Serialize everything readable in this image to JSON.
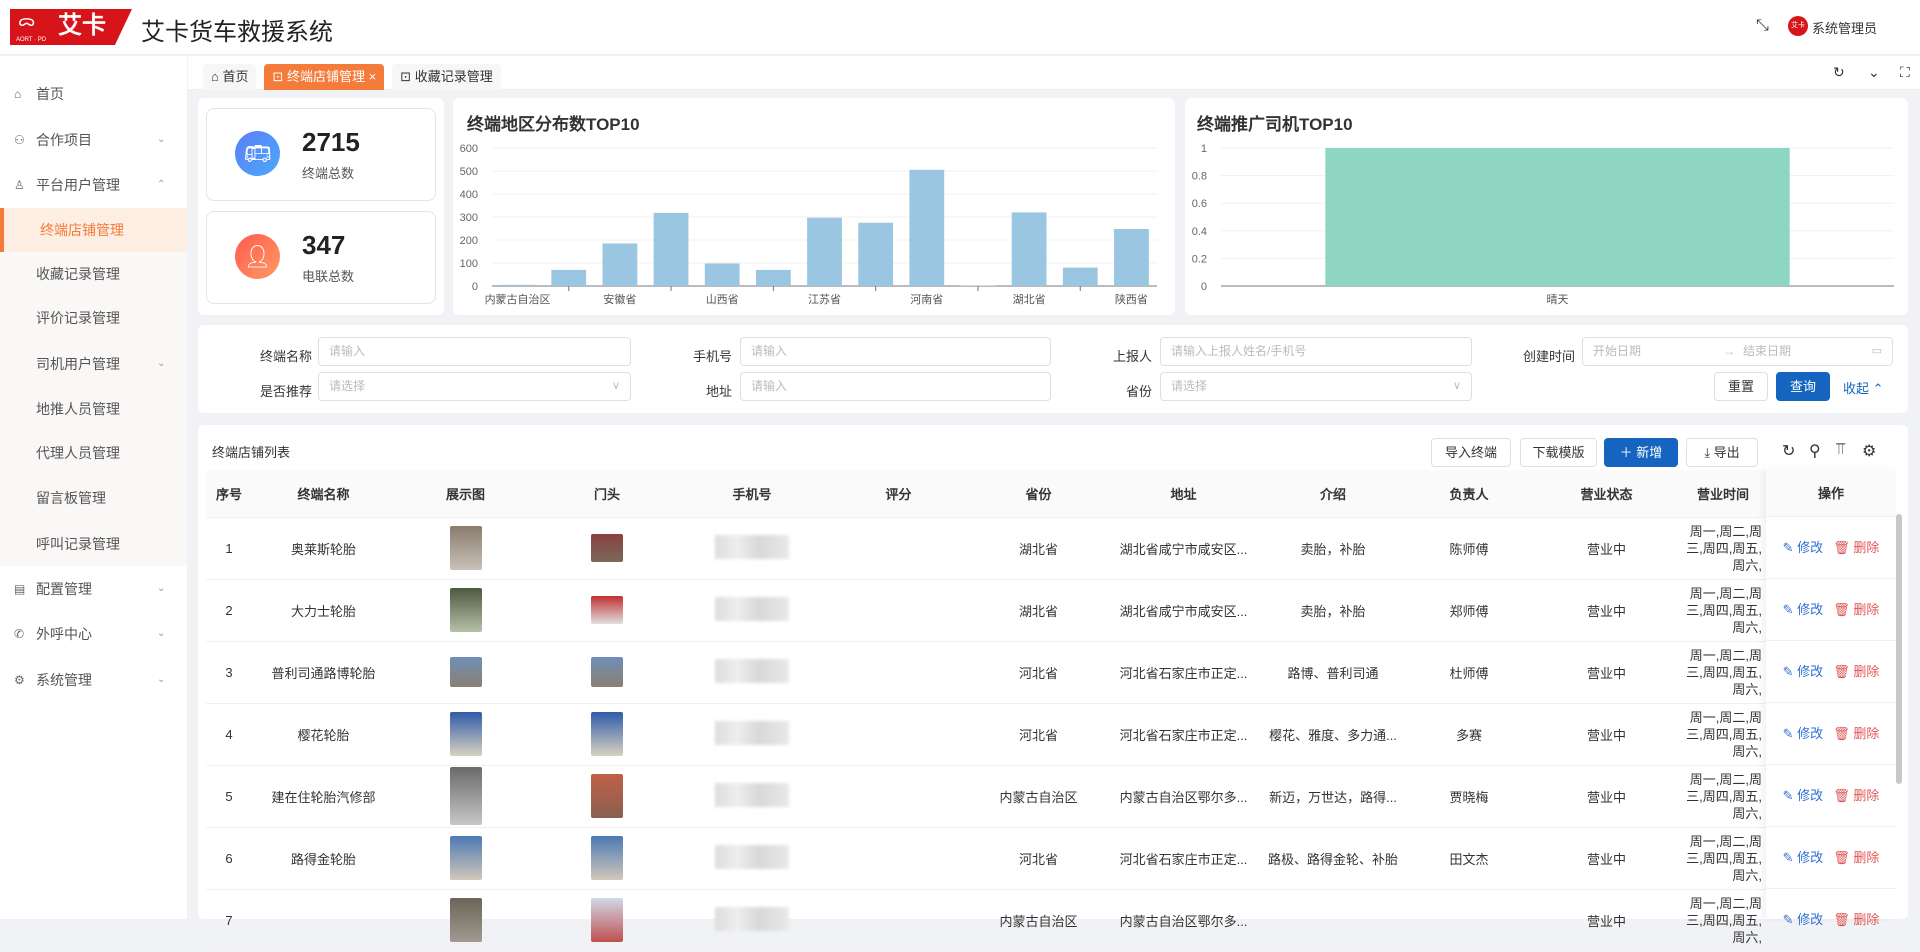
{
  "header": {
    "logo_text": "艾卡",
    "logo_sub": "AORT · PD",
    "title": "艾卡货车救援系统",
    "avatar_text": "艾卡",
    "user": "系统管理员"
  },
  "sidebar": {
    "items": [
      {
        "label": "首页",
        "icon": "home-icon"
      },
      {
        "label": "合作项目",
        "icon": "handshake-icon",
        "chevron": "⌄"
      },
      {
        "label": "平台用户管理",
        "icon": "user-icon",
        "chevron": "⌃"
      },
      {
        "label": "终端店铺管理",
        "active": true
      },
      {
        "label": "收藏记录管理"
      },
      {
        "label": "评价记录管理"
      },
      {
        "label": "司机用户管理",
        "chevron": "⌄"
      },
      {
        "label": "地推人员管理"
      },
      {
        "label": "代理人员管理"
      },
      {
        "label": "留言板管理"
      },
      {
        "label": "呼叫记录管理"
      },
      {
        "label": "配置管理",
        "icon": "document-icon",
        "chevron": "⌄"
      },
      {
        "label": "外呼中心",
        "icon": "phone-icon",
        "chevron": "⌄"
      },
      {
        "label": "系统管理",
        "icon": "gear-icon",
        "chevron": "⌄"
      }
    ]
  },
  "tabs": [
    {
      "label": "首页"
    },
    {
      "label": "终端店铺管理",
      "active": true
    },
    {
      "label": "收藏记录管理"
    }
  ],
  "stats": [
    {
      "value": "2715",
      "label": "终端总数",
      "color": "#4a8ff5"
    },
    {
      "value": "347",
      "label": "电联总数",
      "color": "#ff6f52"
    }
  ],
  "chart_data": [
    {
      "type": "bar",
      "title": "终端地区分布数TOP10",
      "categories": [
        "内蒙古自治区",
        "",
        "安徽省",
        "",
        "山西省",
        "",
        "江苏省",
        "",
        "河南省",
        "",
        "湖北省",
        "",
        "陕西省"
      ],
      "values": [
        5,
        70,
        185,
        318,
        98,
        70,
        297,
        275,
        505,
        2,
        320,
        80,
        248
      ],
      "ylim": [
        0,
        600
      ],
      "yticks": [
        0,
        100,
        200,
        300,
        400,
        500,
        600
      ],
      "color": "#9ac6e2",
      "grid": true
    },
    {
      "type": "bar",
      "title": "终端推广司机TOP10",
      "categories": [
        "晴天"
      ],
      "values": [
        1
      ],
      "ylim": [
        0,
        1
      ],
      "yticks": [
        "0",
        "0.2",
        "0.4",
        "0.6",
        "0.8",
        "1"
      ],
      "color": "#8ed6c1",
      "grid": true
    }
  ],
  "filters": {
    "name": {
      "label": "终端名称",
      "placeholder": "请输入"
    },
    "phone": {
      "label": "手机号",
      "placeholder": "请输入"
    },
    "reporter": {
      "label": "上报人",
      "placeholder": "请输入上报人姓名/手机号"
    },
    "created": {
      "label": "创建时间",
      "start": "开始日期",
      "sep": "→",
      "end": "结束日期"
    },
    "recommend": {
      "label": "是否推荐",
      "placeholder": "请选择"
    },
    "address": {
      "label": "地址",
      "placeholder": "请输入"
    },
    "province": {
      "label": "省份",
      "placeholder": "请选择"
    },
    "reset": "重置",
    "search": "查询",
    "collapse": "收起"
  },
  "table": {
    "title": "终端店铺列表",
    "toolbar": {
      "import": "导入终端",
      "template": "下载模版",
      "add": "新增",
      "export": "导出"
    },
    "columns": [
      "序号",
      "终端名称",
      "展示图",
      "门头",
      "手机号",
      "评分",
      "省份",
      "地址",
      "介绍",
      "负责人",
      "营业状态",
      "营业时间"
    ],
    "ops_header": "操作",
    "edit": "修改",
    "delete": "删除",
    "rows": [
      {
        "no": "1",
        "name": "奥莱斯轮胎",
        "province": "湖北省",
        "address": "湖北省咸宁市咸安区...",
        "intro": "卖胎，补胎",
        "owner": "陈师傅",
        "status": "营业中",
        "hours": "周一,周二,周三,周四,周五,周六,"
      },
      {
        "no": "2",
        "name": "大力士轮胎",
        "province": "湖北省",
        "address": "湖北省咸宁市咸安区...",
        "intro": "卖胎，补胎",
        "owner": "郑师傅",
        "status": "营业中",
        "hours": "周一,周二,周三,周四,周五,周六,"
      },
      {
        "no": "3",
        "name": "普利司通路博轮胎",
        "province": "河北省",
        "address": "河北省石家庄市正定...",
        "intro": "路博、普利司通",
        "owner": "杜师傅",
        "status": "营业中",
        "hours": "周一,周二,周三,周四,周五,周六,"
      },
      {
        "no": "4",
        "name": "樱花轮胎",
        "province": "河北省",
        "address": "河北省石家庄市正定...",
        "intro": "樱花、雅度、多力通...",
        "owner": "多赛",
        "status": "营业中",
        "hours": "周一,周二,周三,周四,周五,周六,"
      },
      {
        "no": "5",
        "name": "建在住轮胎汽修部",
        "province": "内蒙古自治区",
        "address": "内蒙古自治区鄂尔多...",
        "intro": "新迈，万世达，路得...",
        "owner": "贾晓梅",
        "status": "营业中",
        "hours": "周一,周二,周三,周四,周五,周六,"
      },
      {
        "no": "6",
        "name": "路得金轮胎",
        "province": "河北省",
        "address": "河北省石家庄市正定...",
        "intro": "路极、路得金轮、补胎",
        "owner": "田文杰",
        "status": "营业中",
        "hours": "周一,周二,周三,周四,周五,周六,"
      },
      {
        "no": "7",
        "name": "",
        "province": "内蒙古自治区",
        "address": "内蒙古自治区鄂尔多...",
        "intro": "",
        "owner": "",
        "status": "营业中",
        "hours": "周一,周二,周三,周四,周五,周六,"
      }
    ]
  }
}
